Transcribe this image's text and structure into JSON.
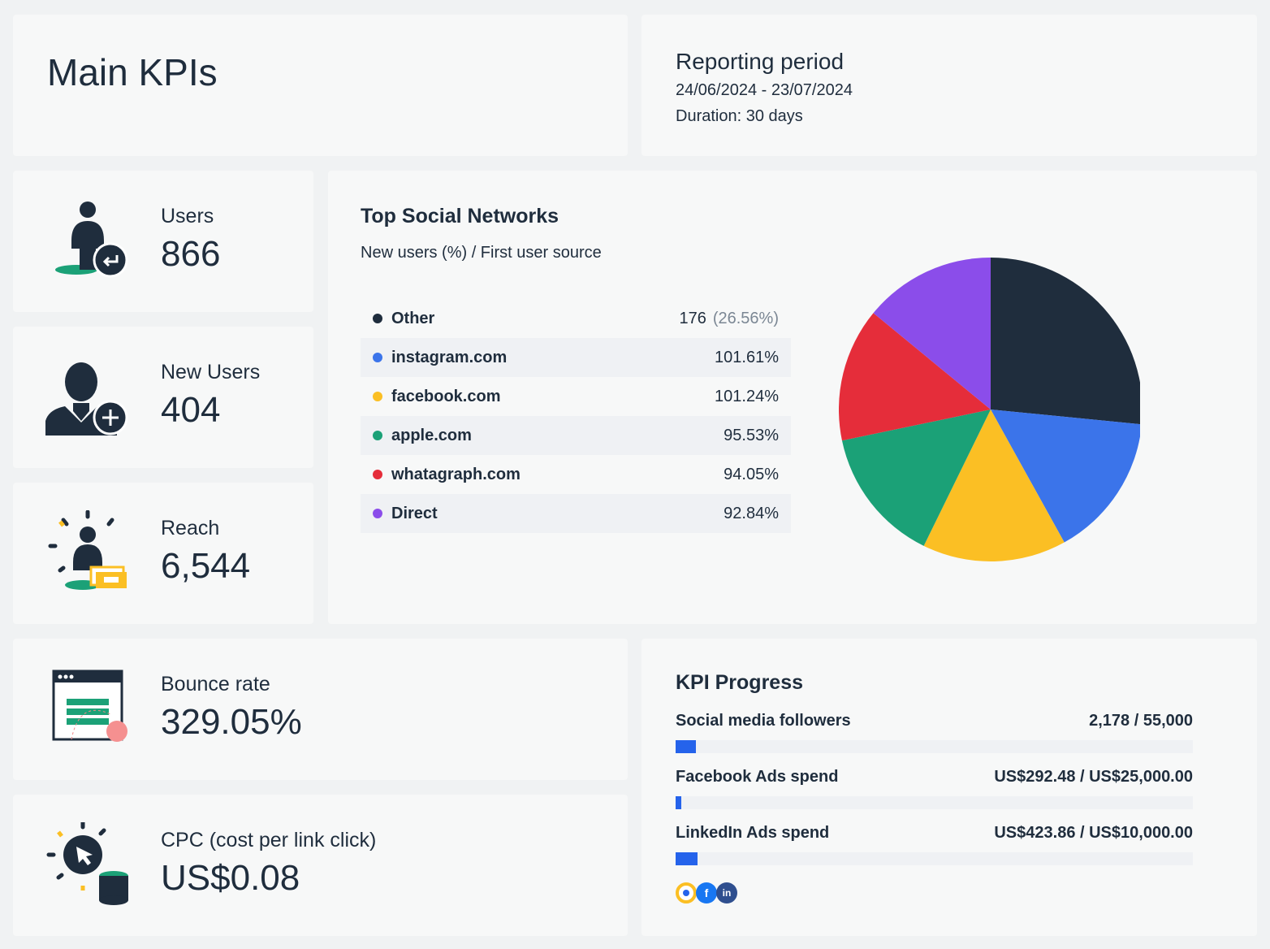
{
  "header": {
    "title": "Main KPIs"
  },
  "reporting": {
    "title": "Reporting period",
    "range": "24/06/2024 - 23/07/2024",
    "duration": "Duration:  30 days"
  },
  "kpis": [
    {
      "label": "Users",
      "value": "866",
      "icon": "user-returning-icon"
    },
    {
      "label": "New Users",
      "value": "404",
      "icon": "user-add-icon"
    },
    {
      "label": "Reach",
      "value": "6,544",
      "icon": "reach-icon"
    },
    {
      "label": "Bounce rate",
      "value": "329.05%",
      "icon": "browser-bounce-icon"
    },
    {
      "label": "CPC (cost per link click)",
      "value": "US$0.08",
      "icon": "cursor-coins-icon"
    }
  ],
  "social": {
    "title": "Top Social Networks",
    "subtitle": "New users (%) / First user source",
    "items": [
      {
        "name": "Other",
        "value": "176",
        "pct": "(26.56%)",
        "color": "#1f2d3d"
      },
      {
        "name": "instagram.com",
        "value": "101.61%",
        "color": "#3b74ea"
      },
      {
        "name": "facebook.com",
        "value": "101.24%",
        "color": "#fbbf24"
      },
      {
        "name": "apple.com",
        "value": "95.53%",
        "color": "#1ba177"
      },
      {
        "name": "whatagraph.com",
        "value": "94.05%",
        "color": "#e52d3a"
      },
      {
        "name": "Direct",
        "value": "92.84%",
        "color": "#8b4dea"
      }
    ]
  },
  "chart_data": {
    "type": "pie",
    "categories": [
      "Other",
      "instagram.com",
      "facebook.com",
      "apple.com",
      "whatagraph.com",
      "Direct"
    ],
    "values": [
      26.56,
      15.38,
      15.32,
      14.46,
      14.23,
      14.05
    ],
    "colors": [
      "#1f2d3d",
      "#3b74ea",
      "#fbbf24",
      "#1ba177",
      "#e52d3a",
      "#8b4dea"
    ]
  },
  "progress": {
    "title": "KPI Progress",
    "items": [
      {
        "label": "Social media followers",
        "value": "2,178 / 55,000",
        "fraction": 0.0396
      },
      {
        "label": "Facebook Ads spend",
        "value": "US$292.48 / US$25,000.00",
        "fraction": 0.0117
      },
      {
        "label": "LinkedIn Ads spend",
        "value": "US$423.86 / US$10,000.00",
        "fraction": 0.0424
      }
    ],
    "sources": [
      "overview-source-icon",
      "facebook-ads-icon",
      "linkedin-ads-icon"
    ]
  }
}
